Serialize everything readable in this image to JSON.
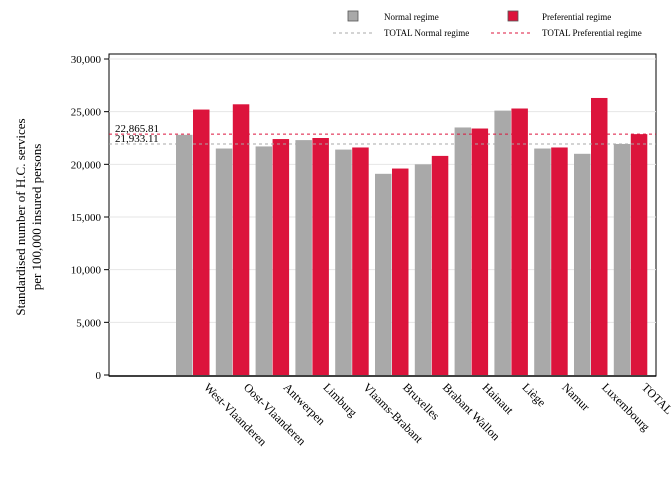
{
  "chart_data": {
    "type": "bar",
    "ylabel_line1": "Standardised number of H.C. services",
    "ylabel_line2": "per 100,000 insured persons",
    "xlabel": "",
    "ylim": [
      0,
      30000
    ],
    "yticks": [
      0,
      5000,
      10000,
      15000,
      20000,
      25000,
      30000
    ],
    "ytick_labels": [
      "0",
      "5,000",
      "10,000",
      "15,000",
      "20,000",
      "25,000",
      "30,000"
    ],
    "grid": true,
    "legend_position": "top-right",
    "categories": [
      "West-Vlaanderen",
      "Oost-Vlaanderen",
      "Antwerpen",
      "Limburg",
      "Vlaams-Brabant",
      "Bruxelles",
      "Brabant Wallon",
      "Hainaut",
      "Liège",
      "Namur",
      "Luxembourg",
      "TOTAL"
    ],
    "series": [
      {
        "name": "Normal regime",
        "color": "#a9a9a9",
        "values": [
          22800,
          21500,
          21700,
          22300,
          21400,
          19100,
          20000,
          23500,
          25100,
          21500,
          21000,
          21933.11
        ]
      },
      {
        "name": "Preferential regime",
        "color": "#dc143c",
        "values": [
          25200,
          25700,
          22400,
          22500,
          21600,
          19600,
          20800,
          23400,
          25300,
          21600,
          26300,
          22865.81
        ]
      }
    ],
    "reference_lines": [
      {
        "name": "TOTAL Normal regime",
        "value": 21933.11,
        "label": "21,933.11",
        "color": "#a9a9a9"
      },
      {
        "name": "TOTAL Preferential regime",
        "value": 22865.81,
        "label": "22,865.81",
        "color": "#dc143c"
      }
    ]
  }
}
